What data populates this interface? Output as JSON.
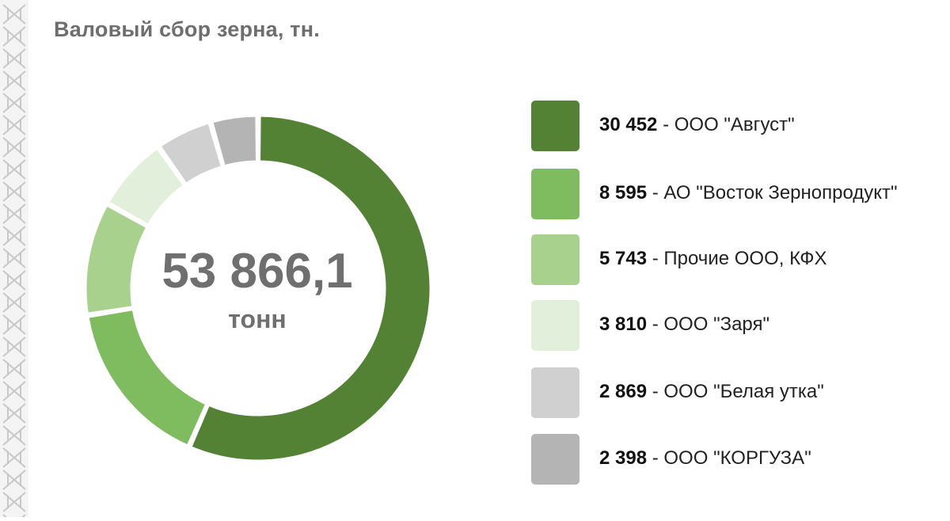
{
  "title": "Валовый сбор зерна, тн.",
  "total": {
    "value": "53 866,1",
    "unit": "тонн"
  },
  "colors": {
    "ornament": "#c8c8c8",
    "series": [
      "#548235",
      "#7fbc5f",
      "#a9d18e",
      "#e2efda",
      "#d0d0d0",
      "#b4b4b4"
    ]
  },
  "legend": [
    {
      "value": "30 452",
      "label": " - ООО \"Август\""
    },
    {
      "value": "8 595",
      "label": " - АО \"Восток Зернопродукт\""
    },
    {
      "value": "5 743",
      "label": " - Прочие ООО, КФХ"
    },
    {
      "value": "3 810",
      "label": " - ООО \"Заря\""
    },
    {
      "value": "2 869",
      "label": " - ООО \"Белая утка\""
    },
    {
      "value": "2 398",
      "label": " - ООО \"КОРГУЗА\""
    }
  ],
  "chart_data": {
    "type": "pie",
    "donut": true,
    "title": "Валовый сбор зерна, тн.",
    "center_label": "53 866,1 тонн",
    "categories": [
      "ООО \"Август\"",
      "АО \"Восток Зернопродукт\"",
      "Прочие ООО, КФХ",
      "ООО \"Заря\"",
      "ООО \"Белая утка\"",
      "ООО \"КОРГУЗА\""
    ],
    "values": [
      30452,
      8595,
      5743,
      3810,
      2869,
      2398
    ],
    "legend_position": "right"
  }
}
